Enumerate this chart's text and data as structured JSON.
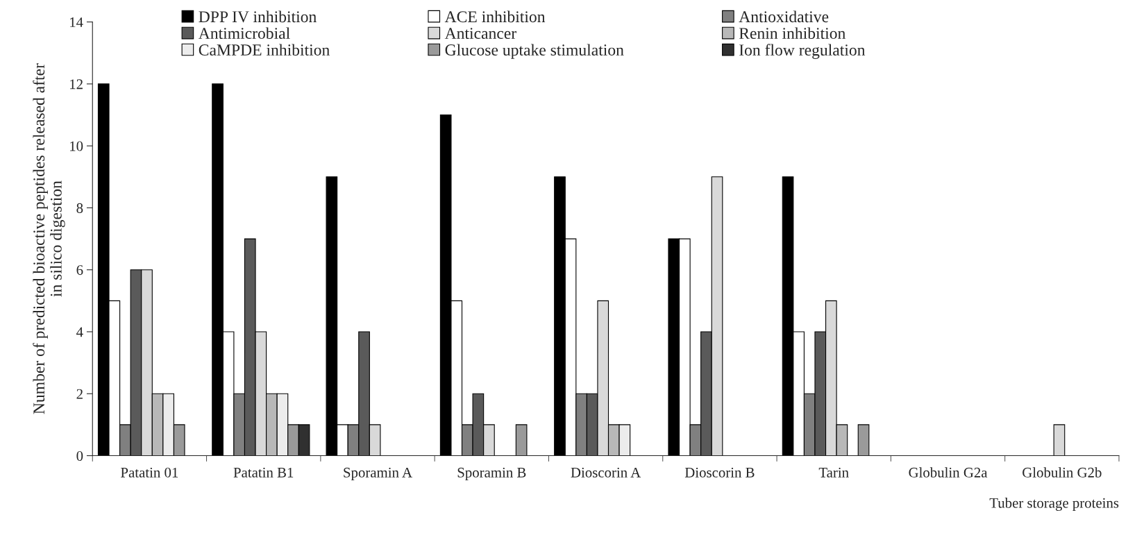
{
  "chart_data": {
    "type": "bar",
    "xlabel": "Tuber storage proteins",
    "ylabel": "Number of predicted bioactive peptides released after\nin silico digestion",
    "categories": [
      "Patatin 01",
      "Patatin B1",
      "Sporamin A",
      "Sporamin B",
      "Dioscorin A",
      "Dioscorin B",
      "Tarin",
      "Globulin G2a",
      "Globulin G2b"
    ],
    "ylim": [
      0,
      14
    ],
    "yticks": [
      0,
      2,
      4,
      6,
      8,
      10,
      12,
      14
    ],
    "grid": false,
    "legend": "top",
    "series": [
      {
        "name": "DPP IV inhibition",
        "color": "#000000",
        "values": [
          12,
          12,
          9,
          11,
          9,
          7,
          9,
          null,
          null
        ]
      },
      {
        "name": "ACE inhibition",
        "color": "#ffffff",
        "values": [
          5,
          4,
          1,
          5,
          7,
          7,
          4,
          null,
          null
        ]
      },
      {
        "name": "Antioxidative",
        "color": "#808080",
        "values": [
          1,
          2,
          1,
          1,
          2,
          1,
          2,
          null,
          null
        ]
      },
      {
        "name": "Antimicrobial",
        "color": "#5a5a5a",
        "values": [
          6,
          7,
          4,
          2,
          2,
          4,
          4,
          null,
          null
        ]
      },
      {
        "name": "Anticancer",
        "color": "#d9d9d9",
        "values": [
          6,
          4,
          1,
          1,
          5,
          9,
          5,
          null,
          1
        ]
      },
      {
        "name": "Renin inhibition",
        "color": "#b8b8b8",
        "values": [
          2,
          2,
          null,
          null,
          1,
          null,
          1,
          null,
          null
        ]
      },
      {
        "name": "CaMPDE inhibition",
        "color": "#ececec",
        "values": [
          2,
          2,
          null,
          null,
          1,
          null,
          null,
          null,
          null
        ]
      },
      {
        "name": "Glucose uptake stimulation",
        "color": "#9a9a9a",
        "values": [
          1,
          1,
          null,
          1,
          null,
          null,
          1,
          null,
          null
        ]
      },
      {
        "name": "Ion flow regulation",
        "color": "#303030",
        "values": [
          null,
          1,
          null,
          null,
          null,
          null,
          null,
          null,
          null
        ]
      }
    ]
  }
}
